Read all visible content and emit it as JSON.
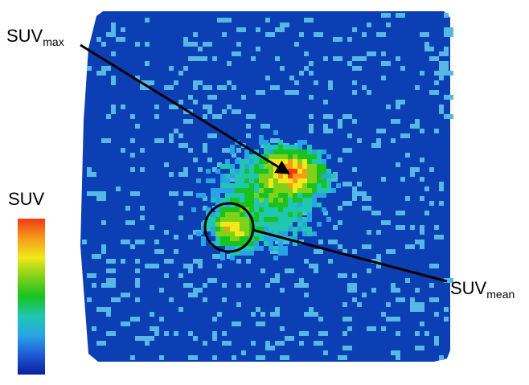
{
  "labels": {
    "suv_max_main": "SUV",
    "suv_max_sub": "max",
    "suv_mean_main": "SUV",
    "suv_mean_sub": "mean",
    "colorbar_title": "SUV"
  },
  "colors": {
    "background_tissue": "#0b3fb3",
    "speckle": "#57b8e6",
    "colormap": [
      "#0a1f9c",
      "#1f59d6",
      "#2aa3e6",
      "#1fc7b0",
      "#19c21f",
      "#7fd11a",
      "#f2e81a",
      "#f59a1a",
      "#f23a14"
    ]
  },
  "icons": {
    "arrow_max": "arrow-icon",
    "line_mean": "leader-line",
    "roi_circle": "roi-circle"
  }
}
